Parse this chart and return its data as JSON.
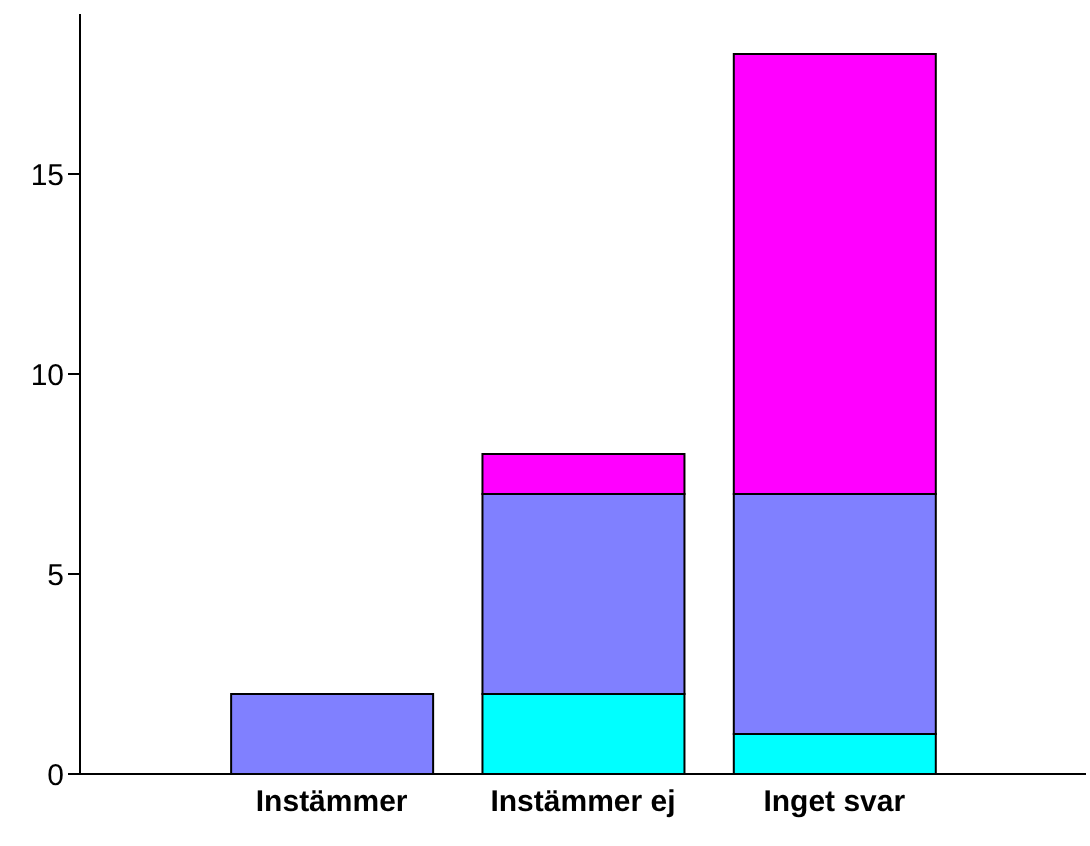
{
  "chart_data": {
    "type": "bar",
    "stacked": true,
    "categories": [
      "Instämmer",
      "Instämmer ej",
      "Inget svar"
    ],
    "series": [
      {
        "color": "#00ffff",
        "values": [
          0,
          2,
          1
        ]
      },
      {
        "color": "#8080ff",
        "values": [
          2,
          5,
          6
        ]
      },
      {
        "color": "#ff00ff",
        "values": [
          0,
          1,
          11
        ]
      }
    ],
    "ylim": [
      0,
      19
    ],
    "yticks": [
      0,
      5,
      10,
      15
    ],
    "grid": false,
    "legend": false
  }
}
